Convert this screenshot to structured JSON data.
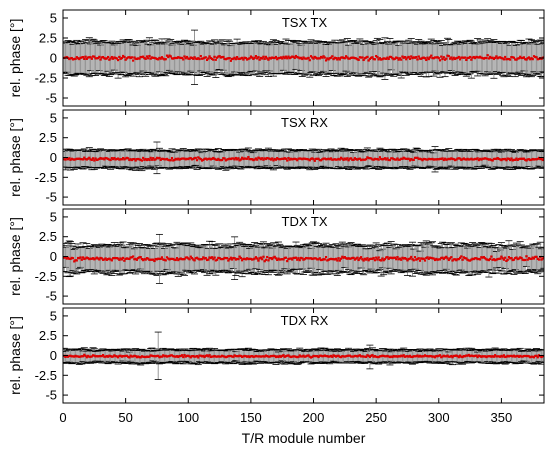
{
  "colors": {
    "mean_marker": "#e00000",
    "error_bar": "#000000",
    "error_bar_fill": "#8c8c8c",
    "frame": "#000000",
    "background": "#ffffff"
  },
  "chart_data": [
    {
      "type": "scatter",
      "title": "TSX TX",
      "xlabel": "T/R module number",
      "ylabel": "rel. phase [°]",
      "xlim": [
        0,
        384
      ],
      "ylim": [
        -6,
        6
      ],
      "xticks": [
        "0",
        "50",
        "100",
        "150",
        "200",
        "250",
        "300",
        "350"
      ],
      "yticks": [
        "5",
        "2.5",
        "0",
        "-2.5",
        "-5"
      ],
      "series": [
        {
          "x_range": [
            1,
            384
          ],
          "mean_level": 0.0,
          "mean_spread": 0.3,
          "error_halfwidth": 2.0,
          "error_halfwidth_spread": 0.4,
          "outliers": [
            {
              "x": 105,
              "halfwidth": 3.4
            },
            {
              "x": 257,
              "halfwidth": 2.6
            }
          ]
        }
      ]
    },
    {
      "type": "scatter",
      "title": "TSX RX",
      "xlabel": "T/R module number",
      "ylabel": "rel. phase [°]",
      "xlim": [
        0,
        384
      ],
      "ylim": [
        -6,
        6
      ],
      "xticks": [
        "0",
        "50",
        "100",
        "150",
        "200",
        "250",
        "300",
        "350"
      ],
      "yticks": [
        "5",
        "2.5",
        "0",
        "-2.5",
        "-5"
      ],
      "series": [
        {
          "x_range": [
            1,
            384
          ],
          "mean_level": -0.2,
          "mean_spread": 0.2,
          "error_halfwidth": 1.1,
          "error_halfwidth_spread": 0.2,
          "outliers": [
            {
              "x": 75,
              "halfwidth": 2.0
            },
            {
              "x": 297,
              "halfwidth": 1.6
            }
          ]
        }
      ]
    },
    {
      "type": "scatter",
      "title": "TDX TX",
      "xlabel": "T/R module number",
      "ylabel": "rel. phase [°]",
      "xlim": [
        0,
        384
      ],
      "ylim": [
        -6,
        6
      ],
      "xticks": [
        "0",
        "50",
        "100",
        "150",
        "200",
        "250",
        "300",
        "350"
      ],
      "yticks": [
        "5",
        "2.5",
        "0",
        "-2.5",
        "-5"
      ],
      "series": [
        {
          "x_range": [
            1,
            384
          ],
          "mean_level": -0.3,
          "mean_spread": 0.3,
          "error_halfwidth": 1.7,
          "error_halfwidth_spread": 0.5,
          "outliers": [
            {
              "x": 77,
              "halfwidth": 3.1
            },
            {
              "x": 137,
              "halfwidth": 2.7
            }
          ]
        }
      ]
    },
    {
      "type": "scatter",
      "title": "TDX RX",
      "xlabel": "T/R module number",
      "ylabel": "rel. phase [°]",
      "xlim": [
        0,
        384
      ],
      "ylim": [
        -6,
        6
      ],
      "xticks": [
        "0",
        "50",
        "100",
        "150",
        "200",
        "250",
        "300",
        "350"
      ],
      "yticks": [
        "5",
        "2.5",
        "0",
        "-2.5",
        "-5"
      ],
      "series": [
        {
          "x_range": [
            1,
            384
          ],
          "mean_level": -0.1,
          "mean_spread": 0.15,
          "error_halfwidth": 0.8,
          "error_halfwidth_spread": 0.2,
          "outliers": [
            {
              "x": 76,
              "halfwidth": 3.0
            },
            {
              "x": 245,
              "halfwidth": 1.5
            }
          ]
        }
      ]
    }
  ]
}
